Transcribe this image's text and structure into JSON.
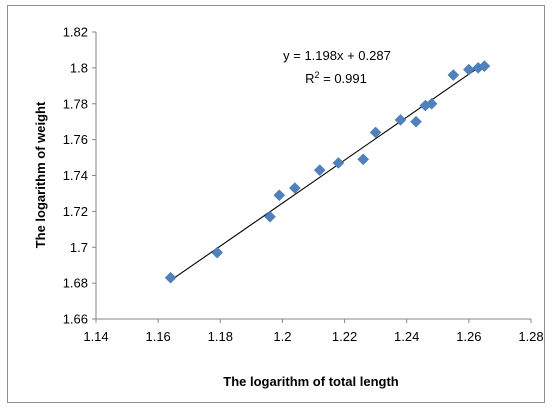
{
  "chart_data": {
    "type": "scatter",
    "xlabel": "The logarithm of total length",
    "ylabel": "The logarithm of weight",
    "xlim": [
      1.14,
      1.28
    ],
    "ylim": [
      1.66,
      1.82
    ],
    "x_ticks": [
      "1.14",
      "1.16",
      "1.18",
      "1.2",
      "1.22",
      "1.24",
      "1.26",
      "1.28"
    ],
    "y_ticks": [
      "1.66",
      "1.68",
      "1.7",
      "1.72",
      "1.74",
      "1.76",
      "1.78",
      "1.8",
      "1.82"
    ],
    "marker_color": "#4f81bd",
    "trendline_color": "#000000",
    "grid": false,
    "points": [
      {
        "x": 1.164,
        "y": 1.683
      },
      {
        "x": 1.179,
        "y": 1.697
      },
      {
        "x": 1.196,
        "y": 1.717
      },
      {
        "x": 1.199,
        "y": 1.729
      },
      {
        "x": 1.204,
        "y": 1.733
      },
      {
        "x": 1.212,
        "y": 1.743
      },
      {
        "x": 1.218,
        "y": 1.747
      },
      {
        "x": 1.226,
        "y": 1.749
      },
      {
        "x": 1.23,
        "y": 1.764
      },
      {
        "x": 1.238,
        "y": 1.771
      },
      {
        "x": 1.243,
        "y": 1.77
      },
      {
        "x": 1.246,
        "y": 1.779
      },
      {
        "x": 1.248,
        "y": 1.78
      },
      {
        "x": 1.255,
        "y": 1.796
      },
      {
        "x": 1.26,
        "y": 1.799
      },
      {
        "x": 1.263,
        "y": 1.8
      },
      {
        "x": 1.265,
        "y": 1.801
      }
    ],
    "trendline": {
      "slope": 1.198,
      "intercept": 0.287,
      "x_start": 1.164,
      "x_end": 1.265,
      "equation": "y = 1.198x + 0.287",
      "r2_prefix": "R",
      "r2_sup": "2",
      "r2_value": " = 0.991"
    }
  }
}
